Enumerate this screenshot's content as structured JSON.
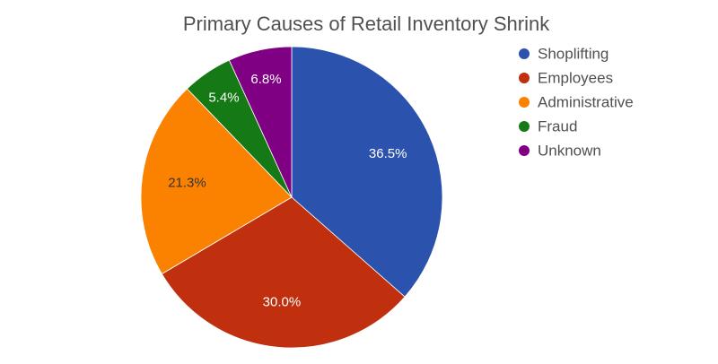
{
  "chart_data": {
    "type": "pie",
    "title": "Primary Causes of Retail Inventory Shrink",
    "legend_position": "right",
    "direction": "clockwise",
    "start_angle": "top",
    "slices": [
      {
        "label": "Shoplifting",
        "value": 36.5,
        "value_label": "36.5%",
        "color": "#2b52ad",
        "label_color": "#ffffff"
      },
      {
        "label": "Employees",
        "value": 30.0,
        "value_label": "30.0%",
        "color": "#c0300e",
        "label_color": "#ffffff"
      },
      {
        "label": "Administrative",
        "value": 21.3,
        "value_label": "21.3%",
        "color": "#fb8200",
        "label_color": "#333333"
      },
      {
        "label": "Fraud",
        "value": 5.4,
        "value_label": "5.4%",
        "color": "#157a15",
        "label_color": "#ffffff"
      },
      {
        "label": "Unknown",
        "value": 6.8,
        "value_label": "6.8%",
        "color": "#7f0083",
        "label_color": "#ffffff"
      }
    ]
  }
}
